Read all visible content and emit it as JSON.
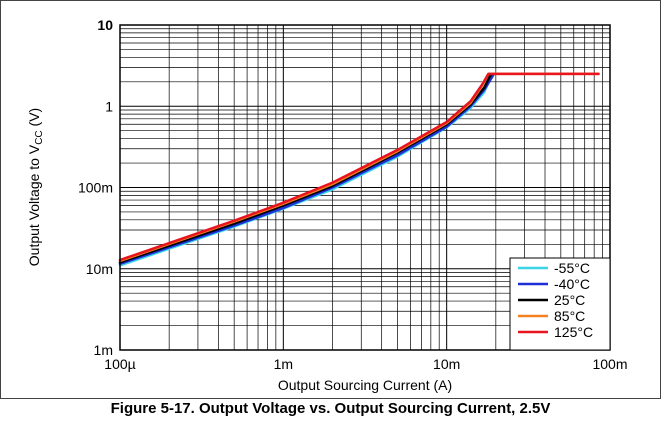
{
  "chart_data": {
    "type": "line",
    "title": "",
    "xlabel": "Output Sourcing Current (A)",
    "ylabel_main": "Output Voltage to V",
    "ylabel_sub": "CC",
    "ylabel_unit": " (V)",
    "xscale": "log",
    "yscale": "log",
    "xlim": [
      0.0001,
      0.1
    ],
    "ylim": [
      0.001,
      10
    ],
    "x_ticks": [
      {
        "value": 0.0001,
        "label": "100µ"
      },
      {
        "value": 0.001,
        "label": "1m"
      },
      {
        "value": 0.01,
        "label": "10m"
      },
      {
        "value": 0.1,
        "label": "100m"
      }
    ],
    "y_ticks": [
      {
        "value": 10,
        "label": "10"
      },
      {
        "value": 1,
        "label": "1"
      },
      {
        "value": 0.1,
        "label": "100m"
      },
      {
        "value": 0.01,
        "label": "10m"
      },
      {
        "value": 0.001,
        "label": "1m"
      }
    ],
    "grid": true,
    "legend_position": "bottom-right",
    "series": [
      {
        "name": "-55°C",
        "color": "#3ad6e8",
        "x": [
          0.0001,
          0.0005,
          0.001,
          0.002,
          0.005,
          0.01,
          0.014,
          0.017,
          0.019
        ],
        "y": [
          0.011,
          0.033,
          0.055,
          0.095,
          0.24,
          0.55,
          0.95,
          1.5,
          2.5
        ]
      },
      {
        "name": "-40°C",
        "color": "#1f2fd6",
        "x": [
          0.0001,
          0.0005,
          0.001,
          0.002,
          0.005,
          0.01,
          0.014,
          0.017,
          0.0195
        ],
        "y": [
          0.0115,
          0.034,
          0.056,
          0.1,
          0.25,
          0.56,
          1.0,
          1.6,
          2.5
        ]
      },
      {
        "name": "25°C",
        "color": "#000000",
        "x": [
          0.0001,
          0.0005,
          0.001,
          0.002,
          0.005,
          0.01,
          0.014,
          0.017,
          0.0185,
          0.019
        ],
        "y": [
          0.012,
          0.036,
          0.06,
          0.105,
          0.27,
          0.6,
          1.05,
          1.7,
          2.4,
          2.5
        ]
      },
      {
        "name": "85°C",
        "color": "#f58220",
        "x": [
          0.0001,
          0.0005,
          0.001,
          0.002,
          0.005,
          0.01,
          0.014,
          0.0165,
          0.018,
          0.085
        ],
        "y": [
          0.0125,
          0.038,
          0.063,
          0.11,
          0.28,
          0.62,
          1.1,
          1.8,
          2.5,
          2.5
        ]
      },
      {
        "name": "125°C",
        "color": "#e8141e",
        "x": [
          0.0001,
          0.0005,
          0.001,
          0.002,
          0.005,
          0.01,
          0.014,
          0.0165,
          0.018,
          0.085
        ],
        "y": [
          0.0128,
          0.039,
          0.065,
          0.115,
          0.29,
          0.64,
          1.15,
          1.85,
          2.5,
          2.5
        ]
      }
    ]
  },
  "caption": "Figure 5-17. Output Voltage vs. Output Sourcing Current, 2.5V"
}
